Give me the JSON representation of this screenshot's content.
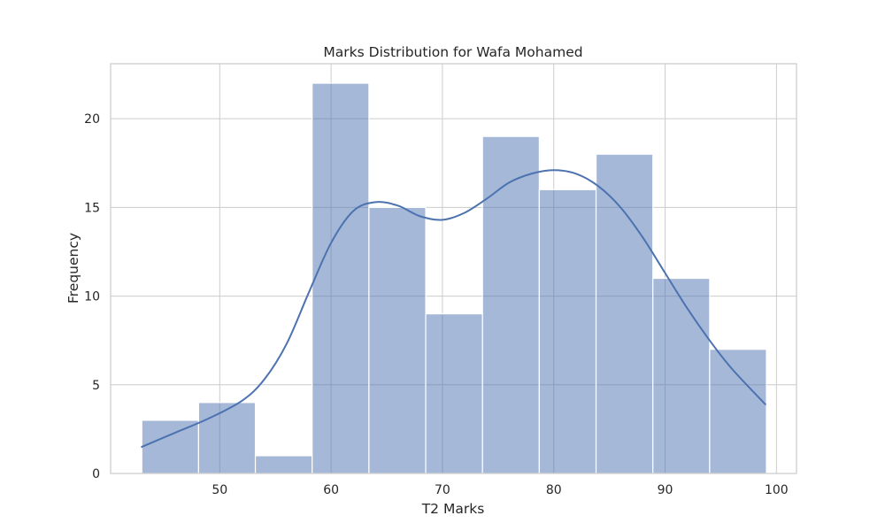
{
  "chart_data": {
    "type": "bar",
    "subtype": "histogram-with-kde",
    "title": "Marks Distribution for Wafa Mohamed",
    "xlabel": "T2 Marks",
    "ylabel": "Frequency",
    "xlim": [
      40.2,
      101.8
    ],
    "ylim": [
      0,
      23.1
    ],
    "xticks": [
      50,
      60,
      70,
      80,
      90,
      100
    ],
    "yticks": [
      0,
      5,
      10,
      15,
      20
    ],
    "grid": true,
    "bins": [
      {
        "start": 43.0,
        "end": 48.1,
        "count": 3
      },
      {
        "start": 48.1,
        "end": 53.2,
        "count": 4
      },
      {
        "start": 53.2,
        "end": 58.3,
        "count": 1
      },
      {
        "start": 58.3,
        "end": 63.4,
        "count": 22
      },
      {
        "start": 63.4,
        "end": 68.5,
        "count": 15
      },
      {
        "start": 68.5,
        "end": 73.6,
        "count": 9
      },
      {
        "start": 73.6,
        "end": 78.7,
        "count": 19
      },
      {
        "start": 78.7,
        "end": 83.8,
        "count": 16
      },
      {
        "start": 83.8,
        "end": 88.9,
        "count": 18
      },
      {
        "start": 88.9,
        "end": 94.0,
        "count": 11
      },
      {
        "start": 94.0,
        "end": 99.1,
        "count": 7
      }
    ],
    "kde": {
      "x": [
        43,
        46,
        49,
        52,
        54,
        56,
        58,
        60,
        62,
        64,
        66,
        68,
        70,
        72,
        74,
        76,
        78,
        80,
        82,
        84,
        86,
        88,
        90,
        92,
        94,
        96,
        99
      ],
      "y": [
        1.5,
        2.3,
        3.1,
        4.1,
        5.3,
        7.3,
        10.2,
        13.0,
        14.8,
        15.3,
        15.1,
        14.5,
        14.3,
        14.7,
        15.5,
        16.4,
        16.9,
        17.1,
        16.9,
        16.2,
        15.0,
        13.3,
        11.3,
        9.3,
        7.5,
        5.9,
        3.9
      ]
    },
    "colors": {
      "bar": "#4c72b0",
      "kde": "#4c72b0",
      "grid": "#cccccc",
      "text": "#262626"
    }
  }
}
